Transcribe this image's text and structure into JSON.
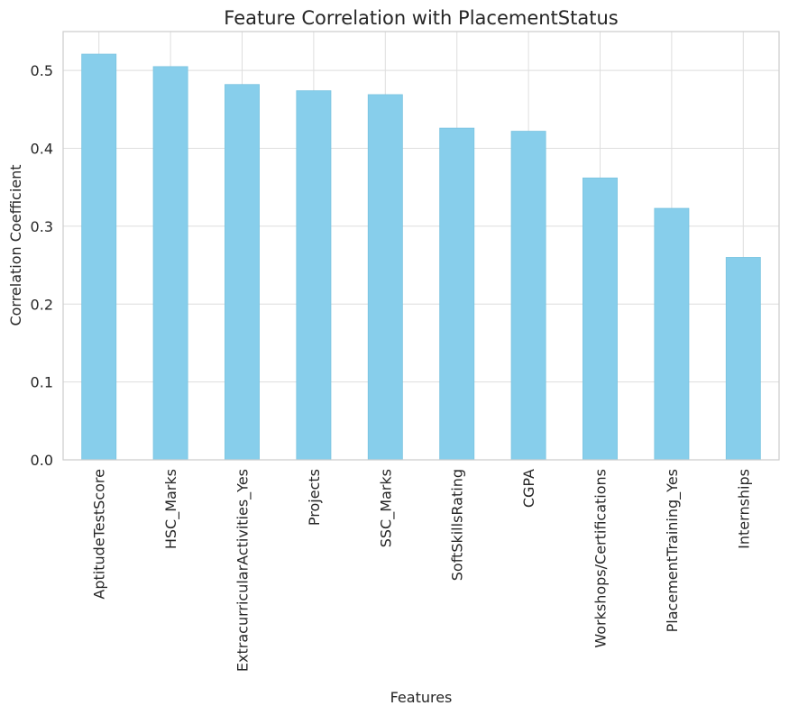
{
  "chart_data": {
    "type": "bar",
    "title": "Feature Correlation with PlacementStatus",
    "xlabel": "Features",
    "ylabel": "Correlation Coefficient",
    "categories": [
      "AptitudeTestScore",
      "HSC_Marks",
      "ExtracurricularActivities_Yes",
      "Projects",
      "SSC_Marks",
      "SoftSkillsRating",
      "CGPA",
      "Workshops/Certifications",
      "PlacementTraining_Yes",
      "Internships"
    ],
    "values": [
      0.521,
      0.505,
      0.482,
      0.474,
      0.469,
      0.426,
      0.422,
      0.362,
      0.323,
      0.26
    ],
    "ylim": [
      0,
      0.55
    ],
    "yticks": [
      0.0,
      0.1,
      0.2,
      0.3,
      0.4,
      0.5
    ],
    "ytick_labels": [
      "0.0",
      "0.1",
      "0.2",
      "0.3",
      "0.4",
      "0.5"
    ],
    "grid": true,
    "legend": "none",
    "colors": {
      "bar": "#87ceeb",
      "bar_edge": "#7ac3e0"
    }
  }
}
